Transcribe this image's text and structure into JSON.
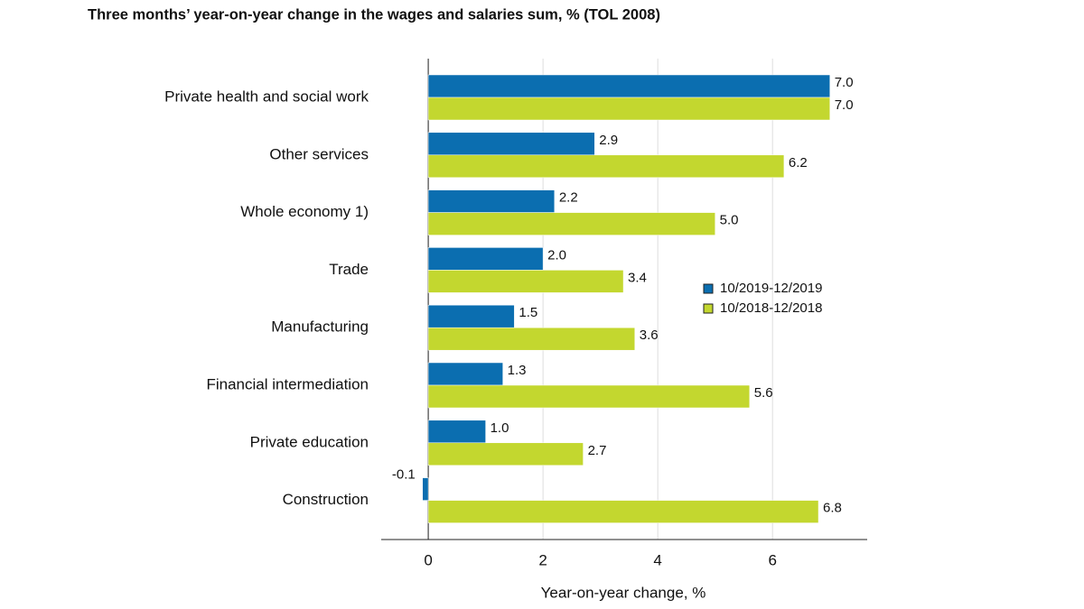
{
  "chart_data": {
    "type": "barh",
    "title": "Three months’ year-on-year change in the wages and salaries sum, % (TOL 2008)",
    "x_label": "Year-on-year change, %",
    "categories": [
      "Private health and social work",
      "Other services",
      "Whole economy 1)",
      "Trade",
      "Manufacturing",
      "Financial intermediation",
      "Private education",
      "Construction"
    ],
    "series": [
      {
        "name": "10/2019-12/2019",
        "color": "#0b6eb0",
        "values": [
          7.0,
          2.9,
          2.2,
          2.0,
          1.5,
          1.3,
          1.0,
          -0.1
        ],
        "value_labels": [
          "7.0",
          "2.9",
          "2.2",
          "2.0",
          "1.5",
          "1.3",
          "1.0",
          "-0.1"
        ]
      },
      {
        "name": "10/2018-12/2018",
        "color": "#c3d72f",
        "values": [
          7.0,
          6.2,
          5.0,
          3.4,
          3.6,
          5.6,
          2.7,
          6.8
        ],
        "value_labels": [
          "7.0",
          "6.2",
          "5.0",
          "3.4",
          "3.6",
          "5.6",
          "2.7",
          "6.8"
        ]
      }
    ],
    "xlim": [
      -0.82,
      7.65
    ],
    "xticks": [
      0,
      2,
      4,
      6
    ],
    "grid": true
  }
}
